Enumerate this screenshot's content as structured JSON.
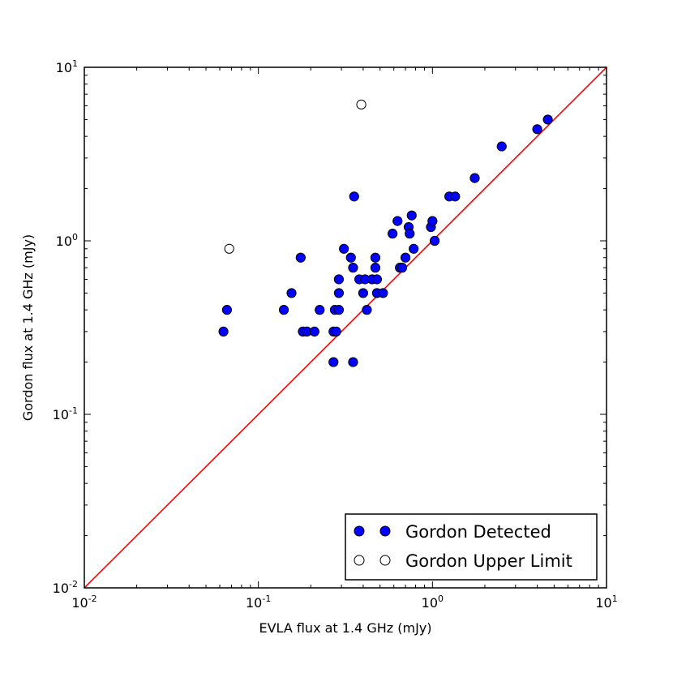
{
  "chart_data": {
    "type": "scatter",
    "xlabel": "EVLA flux at 1.4 GHz (mJy)",
    "ylabel": "Gordon flux at 1.4 GHz (mJy)",
    "xscale": "log",
    "yscale": "log",
    "xlim": [
      0.01,
      10
    ],
    "ylim": [
      0.01,
      10
    ],
    "ticks": [
      {
        "value": 0.01,
        "base": "10",
        "exp": "-2"
      },
      {
        "value": 0.1,
        "base": "10",
        "exp": "-1"
      },
      {
        "value": 1,
        "base": "10",
        "exp": "0"
      },
      {
        "value": 10,
        "base": "10",
        "exp": "1"
      }
    ],
    "reference_line": {
      "type": "y=x",
      "color": "#ff0000"
    },
    "legend": {
      "position": "lower-right"
    },
    "series": [
      {
        "name": "Gordon Detected",
        "marker": "filled-circle",
        "color": "#0000ff",
        "points": [
          [
            0.063,
            0.3
          ],
          [
            0.066,
            0.4
          ],
          [
            0.14,
            0.4
          ],
          [
            0.155,
            0.5
          ],
          [
            0.175,
            0.8
          ],
          [
            0.18,
            0.3
          ],
          [
            0.19,
            0.3
          ],
          [
            0.21,
            0.3
          ],
          [
            0.225,
            0.4
          ],
          [
            0.27,
            0.2
          ],
          [
            0.27,
            0.3
          ],
          [
            0.275,
            0.4
          ],
          [
            0.28,
            0.3
          ],
          [
            0.29,
            0.4
          ],
          [
            0.29,
            0.5
          ],
          [
            0.29,
            0.6
          ],
          [
            0.31,
            0.9
          ],
          [
            0.34,
            0.8
          ],
          [
            0.35,
            0.7
          ],
          [
            0.35,
            0.2
          ],
          [
            0.355,
            1.8
          ],
          [
            0.38,
            0.6
          ],
          [
            0.4,
            0.5
          ],
          [
            0.41,
            0.6
          ],
          [
            0.42,
            0.4
          ],
          [
            0.45,
            0.6
          ],
          [
            0.47,
            0.8
          ],
          [
            0.47,
            0.7
          ],
          [
            0.48,
            0.6
          ],
          [
            0.48,
            0.5
          ],
          [
            0.52,
            0.5
          ],
          [
            0.59,
            1.1
          ],
          [
            0.63,
            1.3
          ],
          [
            0.65,
            0.7
          ],
          [
            0.67,
            0.7
          ],
          [
            0.7,
            0.8
          ],
          [
            0.73,
            1.2
          ],
          [
            0.74,
            1.1
          ],
          [
            0.76,
            1.4
          ],
          [
            0.78,
            0.9
          ],
          [
            0.98,
            1.2
          ],
          [
            1.0,
            1.3
          ],
          [
            1.03,
            1.0
          ],
          [
            1.25,
            1.8
          ],
          [
            1.35,
            1.8
          ],
          [
            1.75,
            2.3
          ],
          [
            2.5,
            3.5
          ],
          [
            4.0,
            4.4
          ],
          [
            4.6,
            5.0
          ]
        ]
      },
      {
        "name": "Gordon Upper Limit",
        "marker": "open-circle",
        "color": "#ffffff",
        "points": [
          [
            0.068,
            0.9
          ],
          [
            0.39,
            6.1
          ]
        ]
      }
    ]
  }
}
